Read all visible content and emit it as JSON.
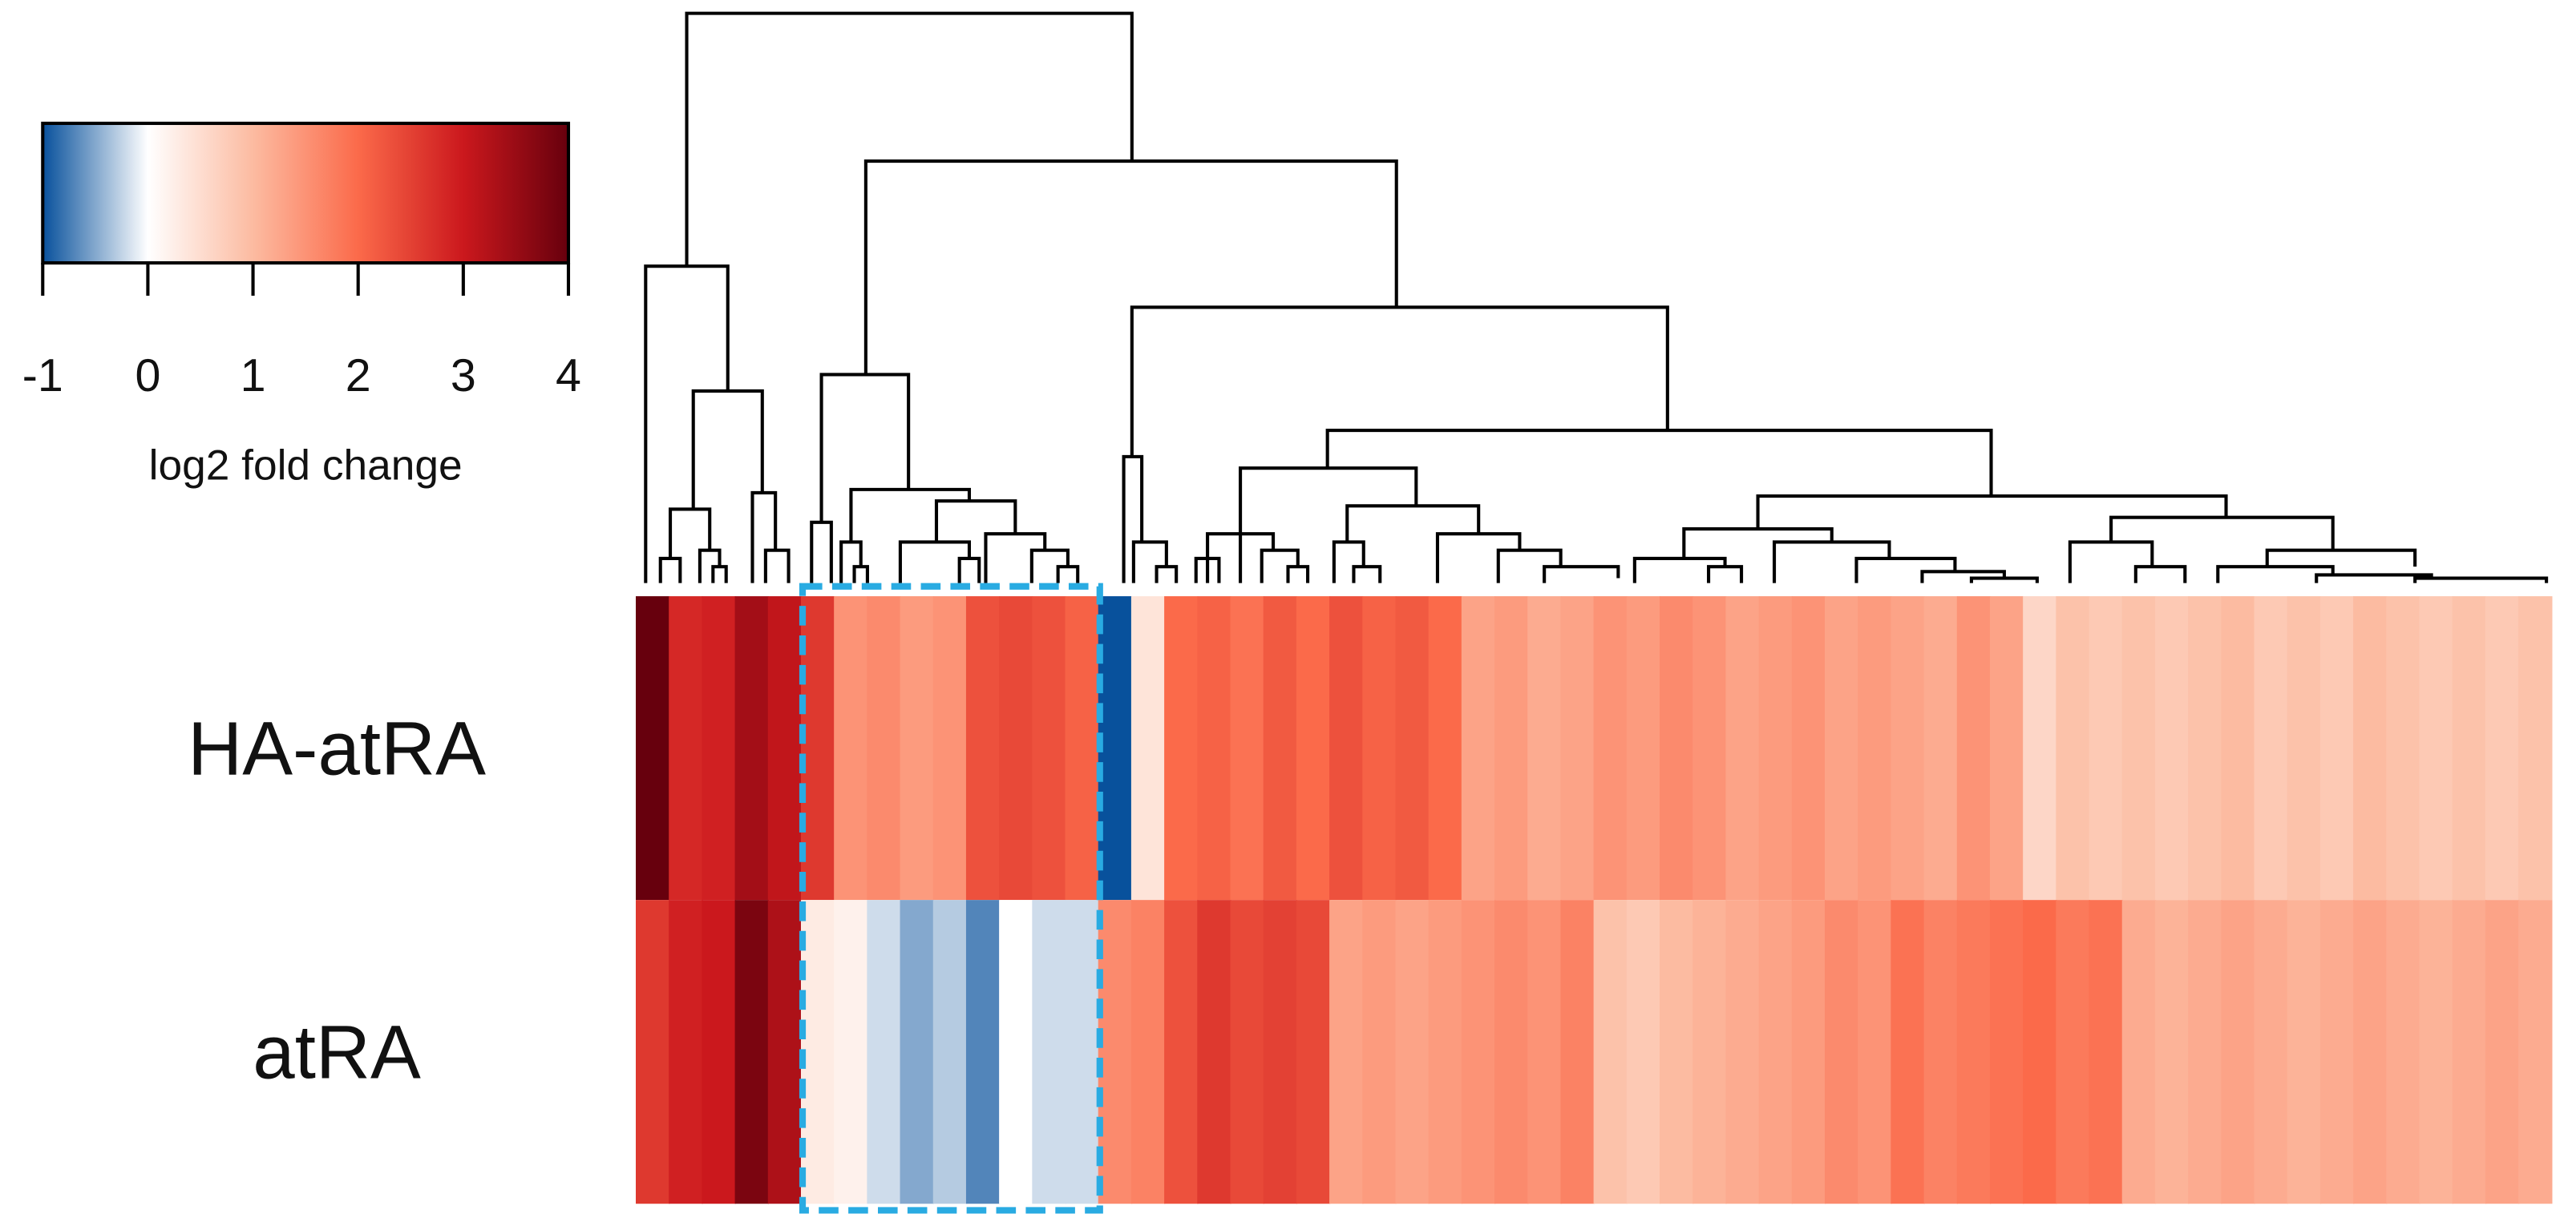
{
  "chart_data": {
    "type": "heatmap",
    "colorbar_label": "log2 fold change",
    "zlim": [
      -1,
      4
    ],
    "zticks": [
      -1,
      0,
      1,
      2,
      3,
      4
    ],
    "color_stops": [
      [
        -1,
        "#08519c"
      ],
      [
        0,
        "#ffffff"
      ],
      [
        1,
        "#fcbba1"
      ],
      [
        2,
        "#fb6a4a"
      ],
      [
        3,
        "#cb181d"
      ],
      [
        4,
        "#67000d"
      ]
    ],
    "series": [
      {
        "name": "HA-atRA",
        "values": [
          4,
          2.8,
          2.9,
          3.4,
          3.1,
          2.6,
          1.5,
          1.6,
          1.4,
          1.5,
          2.3,
          2.4,
          2.3,
          2.1,
          -1,
          0.4,
          2.0,
          2.1,
          1.9,
          2.2,
          2.0,
          2.3,
          2.1,
          2.2,
          2.0,
          1.3,
          1.4,
          1.2,
          1.3,
          1.5,
          1.4,
          1.6,
          1.5,
          1.3,
          1.4,
          1.5,
          1.3,
          1.4,
          1.3,
          1.2,
          1.5,
          1.3,
          0.6,
          0.9,
          0.8,
          0.9,
          0.8,
          0.9,
          1.0,
          0.8,
          0.9,
          0.8,
          1.0,
          0.9,
          0.8,
          0.9,
          0.8,
          0.9
        ]
      },
      {
        "name": "atRA",
        "values": [
          2.6,
          2.9,
          3.0,
          3.8,
          3.3,
          0.3,
          0.2,
          -0.2,
          -0.5,
          -0.3,
          -0.7,
          0.0,
          -0.2,
          -0.2,
          1.6,
          1.7,
          2.3,
          2.6,
          2.4,
          2.5,
          2.4,
          1.3,
          1.4,
          1.3,
          1.4,
          1.5,
          1.6,
          1.5,
          1.7,
          0.9,
          0.8,
          1.0,
          1.1,
          1.2,
          1.3,
          1.4,
          1.6,
          1.5,
          1.9,
          1.7,
          1.8,
          1.9,
          2.0,
          1.8,
          1.9,
          1.2,
          1.1,
          1.2,
          1.3,
          1.2,
          1.1,
          1.2,
          1.3,
          1.2,
          1.1,
          1.2,
          1.3,
          1.2
        ]
      }
    ]
  }
}
